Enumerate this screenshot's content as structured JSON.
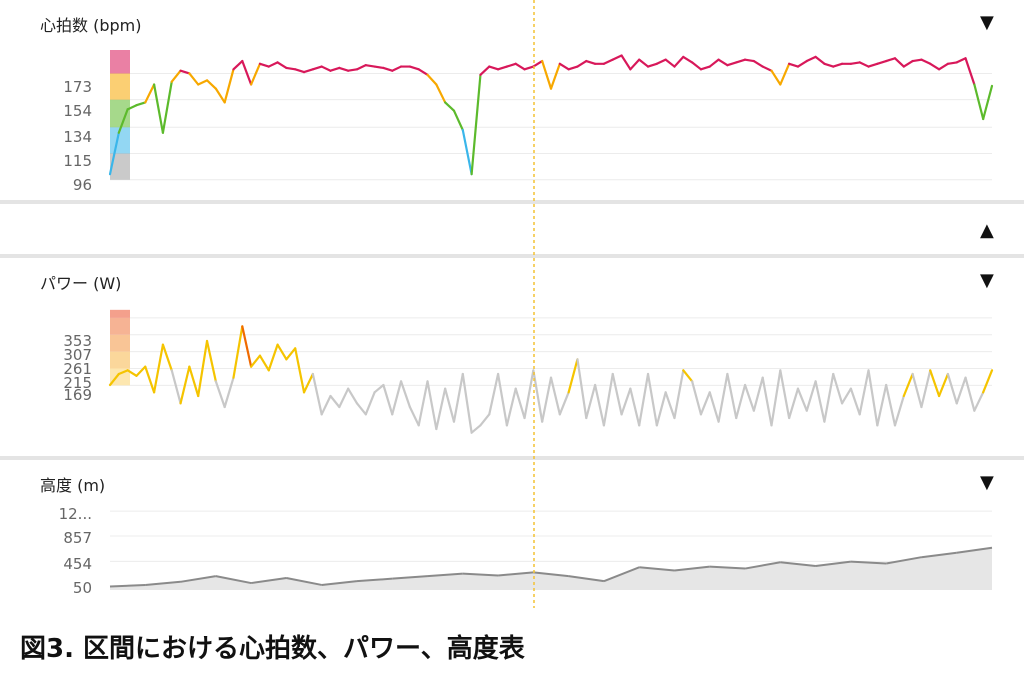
{
  "panels": {
    "hr": {
      "title": "心拍数 (bpm)",
      "toggle": "▼",
      "ticks": [
        "173",
        "154",
        "134",
        "115",
        "96"
      ]
    },
    "collapsed": {
      "toggle": "▲"
    },
    "power": {
      "title": "パワー (W)",
      "toggle": "▼",
      "ticks": [
        "353",
        "307",
        "261",
        "215",
        "169"
      ]
    },
    "alt": {
      "title": "高度 (m)",
      "toggle": "▼",
      "ticks": [
        "12...",
        "857",
        "454",
        "50"
      ]
    }
  },
  "caption": "図3. 区間における心拍数、パワー、高度表",
  "colors": {
    "zone_gray": "#9e9e9e",
    "zone_blue": "#3ab6ea",
    "zone_green": "#5cba2c",
    "zone_yellow": "#f7a800",
    "zone_pink": "#d8185a",
    "power_orange": "#f06a00",
    "power_yellow": "#f5c400",
    "power_gray": "#c8c8c8",
    "altitude_line": "#8a8a8a",
    "altitude_fill": "#e6e6e6",
    "cursor": "#f3c233"
  },
  "chart_data": [
    {
      "type": "line",
      "name": "heart_rate",
      "ylabel": "心拍数 (bpm)",
      "y_ticks": [
        173,
        154,
        134,
        115,
        96
      ],
      "ylim": [
        90,
        190
      ],
      "zones": [
        96,
        115,
        134,
        154,
        173,
        190
      ],
      "x": [
        0,
        1,
        2,
        3,
        4,
        5,
        6,
        7,
        8,
        9,
        10,
        11,
        12,
        13,
        14,
        15,
        16,
        17,
        18,
        19,
        20,
        21,
        22,
        23,
        24,
        25,
        26,
        27,
        28,
        29,
        30,
        31,
        32,
        33,
        34,
        35,
        36,
        37,
        38,
        39,
        40,
        41,
        42,
        43,
        44,
        45,
        46,
        47,
        48,
        49,
        50,
        51,
        52,
        53,
        54,
        55,
        56,
        57,
        58,
        59,
        60,
        61,
        62,
        63,
        64,
        65,
        66,
        67,
        68,
        69,
        70,
        71,
        72,
        73,
        74,
        75,
        76,
        77,
        78,
        79,
        80,
        81,
        82,
        83,
        84,
        85,
        86,
        87,
        88,
        89,
        90,
        91,
        92,
        93,
        94,
        95,
        96,
        97,
        98,
        99,
        100
      ],
      "values": [
        100,
        130,
        147,
        150,
        152,
        165,
        130,
        167,
        175,
        173,
        165,
        168,
        162,
        152,
        176,
        182,
        165,
        180,
        178,
        181,
        177,
        176,
        174,
        176,
        178,
        175,
        177,
        175,
        176,
        179,
        178,
        177,
        175,
        178,
        178,
        176,
        172,
        165,
        152,
        146,
        132,
        100,
        172,
        178,
        176,
        178,
        180,
        176,
        178,
        182,
        162,
        180,
        176,
        178,
        182,
        180,
        180,
        183,
        186,
        176,
        183,
        178,
        180,
        183,
        178,
        185,
        181,
        176,
        178,
        183,
        179,
        181,
        183,
        182,
        178,
        175,
        165,
        180,
        178,
        182,
        185,
        180,
        178,
        180,
        180,
        181,
        178,
        180,
        182,
        184,
        178,
        182,
        183,
        180,
        176,
        180,
        181,
        184,
        165,
        140,
        164
      ]
    },
    {
      "type": "line",
      "name": "power",
      "ylabel": "パワー (W)",
      "y_ticks": [
        353,
        307,
        261,
        215,
        169
      ],
      "ylim": [
        20,
        380
      ],
      "x": [
        0,
        1,
        2,
        3,
        4,
        5,
        6,
        7,
        8,
        9,
        10,
        11,
        12,
        13,
        14,
        15,
        16,
        17,
        18,
        19,
        20,
        21,
        22,
        23,
        24,
        25,
        26,
        27,
        28,
        29,
        30,
        31,
        32,
        33,
        34,
        35,
        36,
        37,
        38,
        39,
        40,
        41,
        42,
        43,
        44,
        45,
        46,
        47,
        48,
        49,
        50,
        51,
        52,
        53,
        54,
        55,
        56,
        57,
        58,
        59,
        60,
        61,
        62,
        63,
        64,
        65,
        66,
        67,
        68,
        69,
        70,
        71,
        72,
        73,
        74,
        75,
        76,
        77,
        78,
        79,
        80,
        81,
        82,
        83,
        84,
        85,
        86,
        87,
        88,
        89,
        90,
        91,
        92,
        93,
        94,
        95,
        96,
        97,
        98,
        99,
        100
      ],
      "values": [
        170,
        200,
        210,
        195,
        220,
        150,
        280,
        210,
        120,
        220,
        140,
        290,
        180,
        110,
        190,
        330,
        220,
        250,
        210,
        280,
        240,
        270,
        150,
        200,
        90,
        140,
        110,
        160,
        120,
        90,
        150,
        170,
        90,
        180,
        110,
        60,
        180,
        50,
        160,
        70,
        200,
        40,
        60,
        90,
        200,
        60,
        160,
        80,
        210,
        70,
        190,
        90,
        150,
        240,
        80,
        170,
        60,
        200,
        90,
        160,
        60,
        200,
        60,
        150,
        80,
        210,
        180,
        90,
        150,
        70,
        200,
        80,
        170,
        100,
        190,
        60,
        210,
        80,
        160,
        100,
        180,
        70,
        200,
        120,
        160,
        90,
        210,
        60,
        170,
        60,
        140,
        200,
        110,
        210,
        140,
        200,
        120,
        190,
        100,
        150,
        210
      ]
    },
    {
      "type": "area",
      "name": "altitude",
      "ylabel": "高度 (m)",
      "y_ticks": [
        "12...",
        857,
        454,
        50
      ],
      "ylim": [
        0,
        1300
      ],
      "x": [
        0,
        4,
        8,
        12,
        16,
        20,
        24,
        28,
        32,
        36,
        40,
        44,
        48,
        52,
        56,
        60,
        64,
        68,
        72,
        76,
        80,
        84,
        88,
        92,
        96,
        100
      ],
      "values": [
        55,
        80,
        130,
        220,
        110,
        190,
        80,
        140,
        180,
        220,
        260,
        230,
        280,
        220,
        140,
        360,
        310,
        370,
        340,
        440,
        380,
        450,
        420,
        520,
        590,
        670
      ]
    }
  ]
}
